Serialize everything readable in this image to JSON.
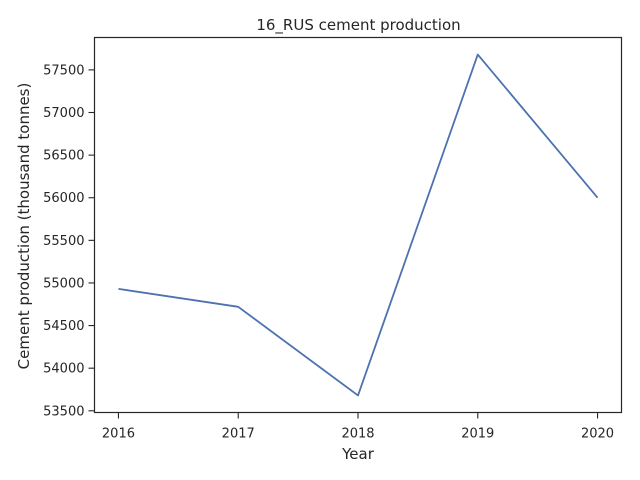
{
  "chart_data": {
    "type": "line",
    "title": "16_RUS cement production",
    "xlabel": "Year",
    "ylabel": "Cement production (thousand tonnes)",
    "x": [
      2016,
      2017,
      2018,
      2019,
      2020
    ],
    "series": [
      {
        "values": [
          54930,
          54720,
          53680,
          57680,
          56000
        ],
        "color": "#4c72b0"
      }
    ],
    "x_ticks": [
      "2016",
      "2017",
      "2018",
      "2019",
      "2020"
    ],
    "y_ticks": [
      53500,
      54000,
      54500,
      55000,
      55500,
      56000,
      56500,
      57000,
      57500
    ],
    "xlim": [
      2015.8,
      2020.2
    ],
    "ylim": [
      53480,
      57880
    ],
    "grid": false,
    "legend": "none"
  }
}
